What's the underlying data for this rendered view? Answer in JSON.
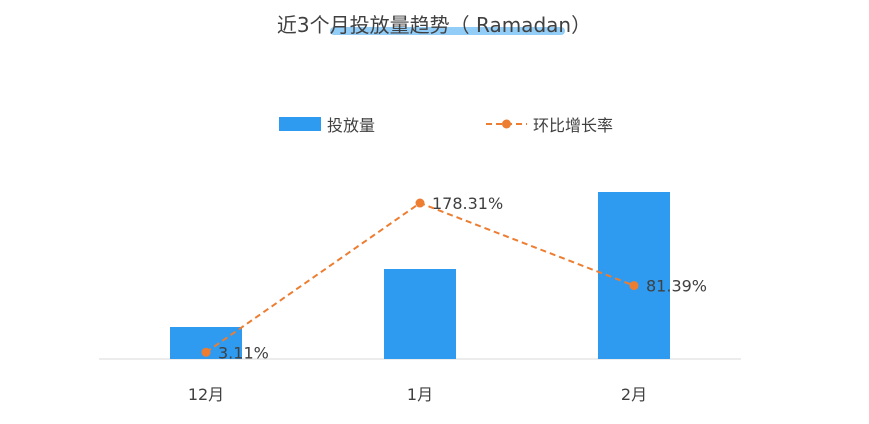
{
  "chart_data": {
    "type": "bar+line",
    "title": "近3个月投放量趋势（ Ramadan）",
    "categories": [
      "12月",
      "1月",
      "2月"
    ],
    "series": [
      {
        "name": "投放量",
        "type": "bar",
        "color": "#2e9bf0",
        "values": [
          32,
          90,
          167
        ]
      },
      {
        "name": "环比增长率",
        "type": "line",
        "style": "dashed",
        "color": "#ed7d31",
        "values": [
          3.11,
          178.31,
          81.39
        ],
        "labels": [
          "3.11%",
          "178.31%",
          "81.39%"
        ]
      }
    ],
    "ylim_bar": [
      0,
      200
    ],
    "ylim_line": [
      -40,
      230
    ],
    "grid": false,
    "legend_position": "top-center",
    "title_highlight_color": "#7fc4f6"
  }
}
